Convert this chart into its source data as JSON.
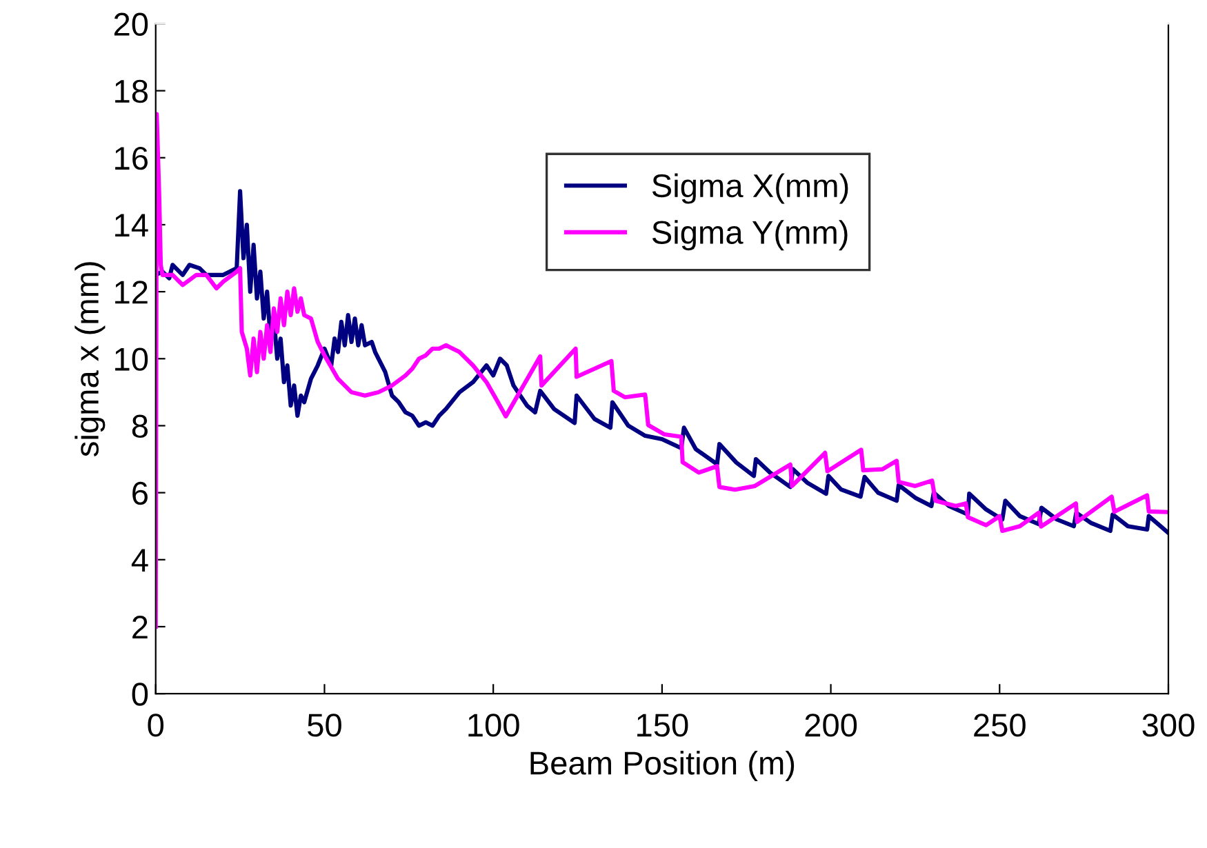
{
  "chart_data": {
    "type": "line",
    "xlabel": "Beam Position (m)",
    "ylabel": "sigma x (mm)",
    "xlim": [
      0,
      300
    ],
    "xticks": [
      0,
      50,
      100,
      150,
      200,
      250,
      300
    ],
    "ylim": [
      0,
      20
    ],
    "yticks": [
      0,
      2,
      4,
      6,
      8,
      10,
      12,
      14,
      16,
      18,
      20
    ],
    "grid": false,
    "legend": "top right",
    "marker": "none",
    "line_style": "solid",
    "series": [
      {
        "name": "Sigma X(mm)",
        "color": "#000080",
        "x": [
          0,
          2,
          4,
          5,
          8,
          10,
          13,
          15,
          20,
          24,
          25,
          26,
          27,
          28,
          29,
          30,
          31,
          32,
          33,
          34,
          35,
          36,
          37,
          38,
          39,
          40,
          41,
          42,
          43,
          44,
          46,
          48,
          50,
          52,
          53,
          54,
          55,
          56,
          57,
          58,
          59,
          60,
          61,
          62,
          64,
          65,
          68,
          70,
          72,
          74,
          76,
          78,
          80,
          82,
          84,
          86,
          90,
          94,
          98,
          100,
          102,
          104,
          106,
          110,
          112.4,
          113.9,
          118,
          124.1,
          124.7,
          130,
          134.7,
          135.3,
          140,
          145,
          150,
          155.7,
          156.5,
          160,
          166.3,
          167,
          172,
          177.2,
          177.8,
          182,
          188,
          188.8,
          193,
          198.6,
          199.3,
          203,
          208.8,
          210,
          214,
          219.5,
          220.1,
          225,
          229.8,
          230.5,
          235,
          240.6,
          241,
          246,
          250.8,
          251.7,
          256,
          261.6,
          262.4,
          267,
          272,
          272.7,
          277,
          282.8,
          283.5,
          288,
          293.7,
          294.2,
          300
        ],
        "values": [
          12.5,
          12.6,
          12.4,
          12.8,
          12.5,
          12.8,
          12.7,
          12.5,
          12.5,
          12.7,
          15.0,
          13.0,
          14.0,
          12.0,
          13.4,
          11.8,
          12.6,
          11.2,
          12.0,
          10.6,
          11.2,
          10.0,
          10.6,
          9.3,
          9.8,
          8.6,
          9.2,
          8.3,
          8.9,
          8.7,
          9.4,
          9.8,
          10.3,
          9.8,
          10.6,
          10.2,
          11.1,
          10.4,
          11.3,
          10.5,
          11.2,
          10.4,
          11.0,
          10.4,
          10.5,
          10.2,
          9.6,
          8.9,
          8.7,
          8.4,
          8.3,
          8.0,
          8.1,
          8.0,
          8.3,
          8.5,
          9.0,
          9.3,
          9.8,
          9.5,
          10.0,
          9.8,
          9.2,
          8.6,
          8.4,
          9.04,
          8.5,
          8.08,
          8.9,
          8.2,
          7.94,
          8.7,
          8.0,
          7.7,
          7.6,
          7.33,
          7.94,
          7.3,
          6.85,
          7.45,
          6.9,
          6.5,
          7.0,
          6.6,
          6.17,
          6.7,
          6.3,
          5.97,
          6.5,
          6.1,
          5.88,
          6.47,
          6.0,
          5.76,
          6.23,
          5.85,
          5.6,
          6.0,
          5.6,
          5.35,
          5.97,
          5.5,
          5.2,
          5.76,
          5.3,
          5.06,
          5.55,
          5.2,
          5.0,
          5.4,
          5.1,
          4.86,
          5.35,
          5.0,
          4.9,
          5.3,
          4.8
        ]
      },
      {
        "name": "Sigma Y(mm)",
        "color": "#ff00ff",
        "x": [
          0,
          0.3,
          1,
          1.5,
          2,
          5,
          8,
          12,
          15,
          18,
          20,
          24,
          25,
          25.5,
          27,
          28,
          29,
          30,
          31,
          32,
          33,
          34,
          35,
          36,
          37,
          38,
          39,
          40,
          41,
          42,
          43,
          44,
          46,
          48,
          50,
          54,
          58,
          62,
          66,
          70,
          74,
          76,
          78,
          80,
          82,
          84,
          86,
          88,
          90,
          94,
          98,
          101,
          103.7,
          113.9,
          114.3,
          124.4,
          124.7,
          135,
          135.7,
          139,
          145,
          145.9,
          150.7,
          155.7,
          156.1,
          160.9,
          166.3,
          167,
          171.6,
          177.5,
          188,
          188.5,
          190.8,
          198.3,
          199,
          209,
          209.6,
          215.3,
          219.5,
          220.1,
          225,
          230,
          231,
          237,
          240,
          240.6,
          246,
          250,
          250.8,
          256,
          261.6,
          262.3,
          272.6,
          273,
          283.2,
          284,
          293.7,
          294.2,
          300
        ],
        "values": [
          2.0,
          17.3,
          15.0,
          12.8,
          12.5,
          12.5,
          12.2,
          12.5,
          12.5,
          12.1,
          12.3,
          12.6,
          12.7,
          10.8,
          10.3,
          9.5,
          10.6,
          9.6,
          10.8,
          10.0,
          11.0,
          10.2,
          11.5,
          10.8,
          11.8,
          11.0,
          12.0,
          11.3,
          12.1,
          11.4,
          11.8,
          11.3,
          11.2,
          10.5,
          10.1,
          9.4,
          9.0,
          8.9,
          9.0,
          9.2,
          9.5,
          9.7,
          10.0,
          10.1,
          10.3,
          10.3,
          10.4,
          10.3,
          10.2,
          9.8,
          9.3,
          8.77,
          8.28,
          10.07,
          9.2,
          10.3,
          9.46,
          9.93,
          9.04,
          8.85,
          8.93,
          8.02,
          7.74,
          7.67,
          6.91,
          6.6,
          6.79,
          6.17,
          6.09,
          6.2,
          6.84,
          6.2,
          6.43,
          7.19,
          6.64,
          7.28,
          6.67,
          6.7,
          6.95,
          6.32,
          6.2,
          6.36,
          5.76,
          5.6,
          5.68,
          5.27,
          5.03,
          5.3,
          4.86,
          5.0,
          5.4,
          4.99,
          5.68,
          5.13,
          5.88,
          5.43,
          5.92,
          5.44,
          5.42
        ]
      }
    ]
  }
}
